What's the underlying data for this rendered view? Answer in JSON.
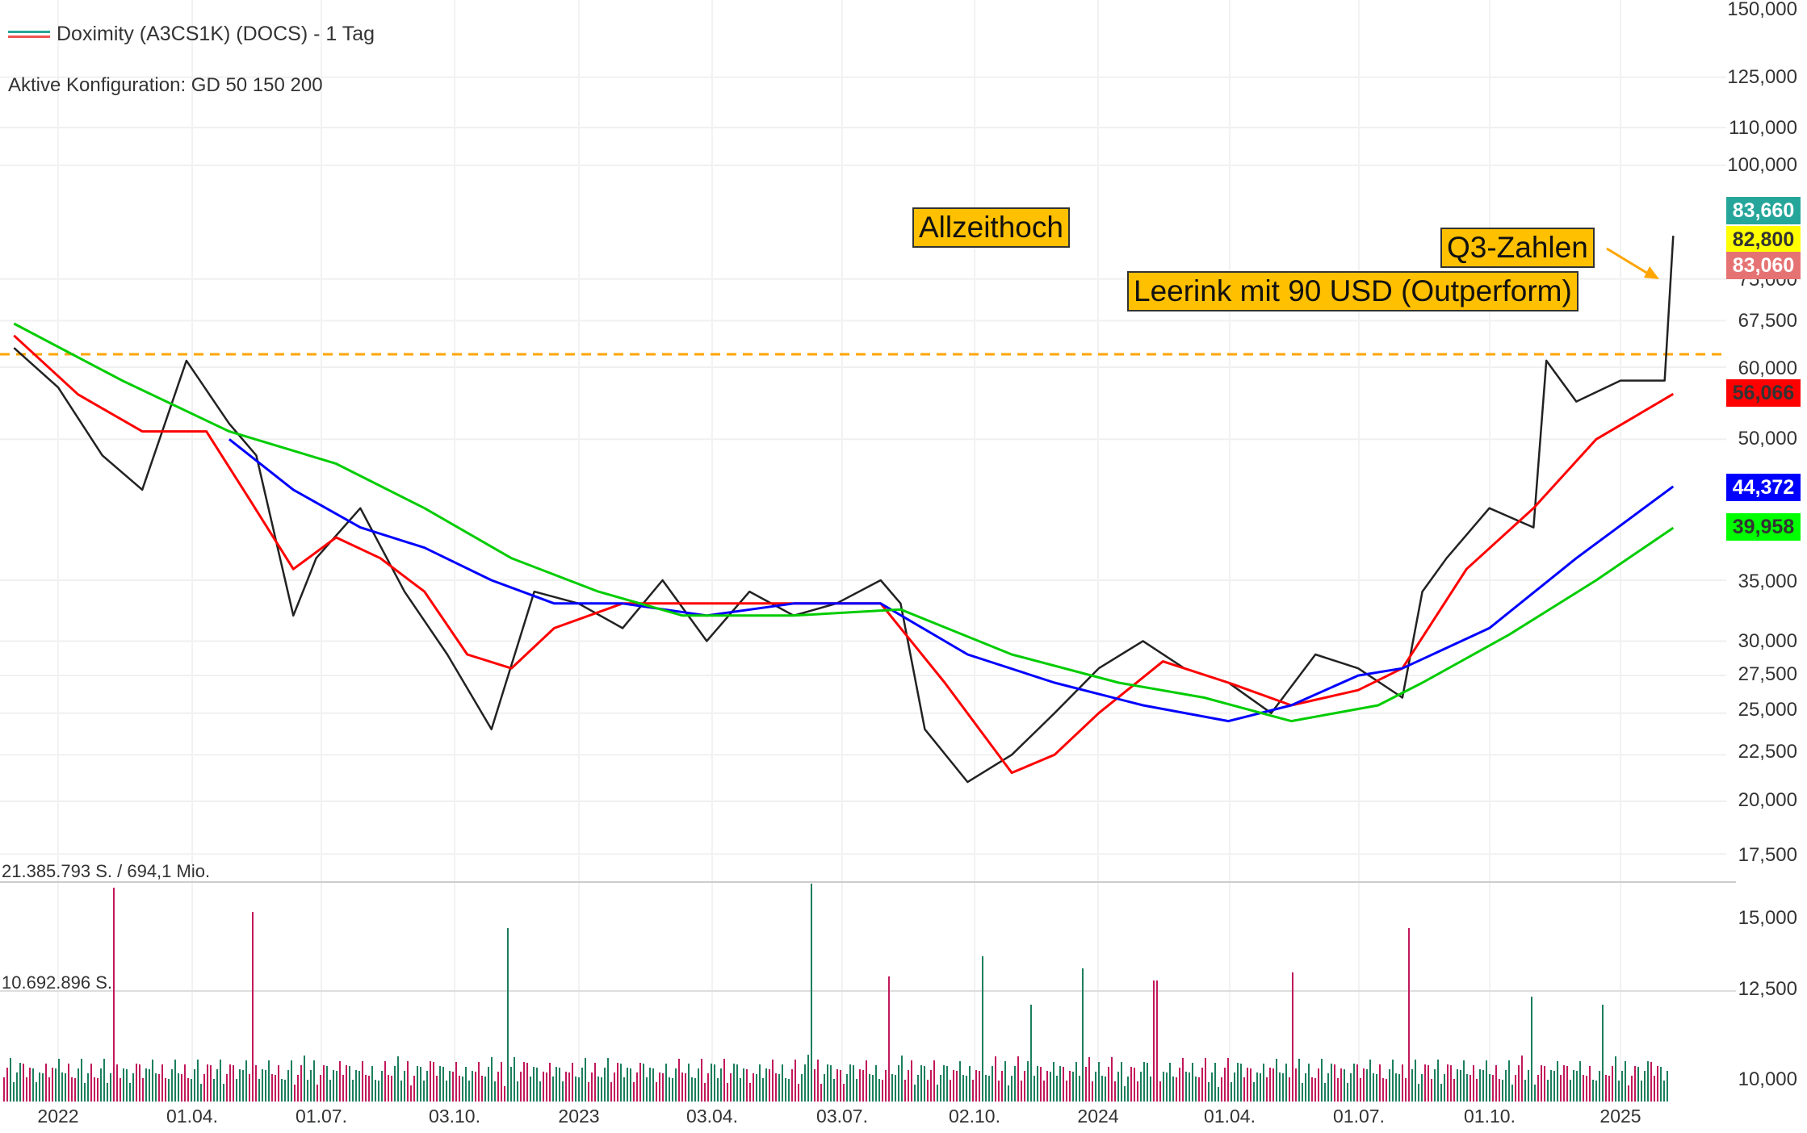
{
  "header": {
    "title": "Doximity (A3CS1K) (DOCS) - 1 Tag",
    "config": "Aktive Konfiguration: GD 50 150 200"
  },
  "volume_labels": {
    "max": "21.385.793 S. / 694,1 Mio.",
    "mid": "10.692.896 S."
  },
  "annotations": {
    "ath": "Allzeithoch",
    "q3": "Q3-Zahlen",
    "leerink": "Leerink mit 90 USD (Outperform)"
  },
  "price_tags": [
    {
      "label": "83,660",
      "bg": "#26a69a",
      "fg": "#ffffff"
    },
    {
      "label": "82,800",
      "bg": "#ffff00",
      "fg": "#333333"
    },
    {
      "label": "83,060",
      "bg": "#e57373",
      "fg": "#ffffff"
    },
    {
      "label": "56,066",
      "bg": "#ff0000",
      "fg": "#333333"
    },
    {
      "label": "44,372",
      "bg": "#0000ff",
      "fg": "#ffffff"
    },
    {
      "label": "39,958",
      "bg": "#00ff00",
      "fg": "#333333"
    }
  ],
  "y_ticks": [
    "150,000",
    "125,000",
    "110,000",
    "100,000",
    "75,000",
    "67,500",
    "60,000",
    "50,000",
    "35,000",
    "30,000",
    "27,500",
    "25,000",
    "22,500",
    "20,000",
    "17,500",
    "15,000",
    "12,500",
    "10,000"
  ],
  "x_ticks": [
    "2022",
    "01.04.",
    "01.07.",
    "03.10.",
    "2023",
    "03.04.",
    "03.07.",
    "02.10.",
    "2024",
    "01.04.",
    "01.07.",
    "01.10.",
    "2025"
  ],
  "chart_data": {
    "type": "line",
    "scale": "log",
    "ylim": [
      17500,
      150000
    ],
    "resistance_level": 62500,
    "series": [
      {
        "name": "",
        "color": "#222222",
        "x": [
          "2021-12-01",
          "2022-01-01",
          "2022-02-01",
          "2022-03-01",
          "2022-04-01",
          "2022-05-01",
          "2022-05-20",
          "2022-06-15",
          "2022-07-01",
          "2022-08-01",
          "2022-09-01",
          "2022-10-01",
          "2022-11-01",
          "2022-12-01",
          "2023-01-01",
          "2023-02-01",
          "2023-03-01",
          "2023-04-01",
          "2023-05-01",
          "2023-06-01",
          "2023-07-01",
          "2023-08-01",
          "2023-08-15",
          "2023-09-01",
          "2023-10-01",
          "2023-11-01",
          "2023-12-01",
          "2024-01-01",
          "2024-02-01",
          "2024-03-01",
          "2024-04-01",
          "2024-05-01",
          "2024-06-01",
          "2024-07-01",
          "2024-08-01",
          "2024-08-15",
          "2024-09-01",
          "2024-10-01",
          "2024-11-01",
          "2024-11-10",
          "2024-12-01",
          "2025-01-01",
          "2025-02-01",
          "2025-02-07"
        ],
        "y": [
          63000,
          57000,
          48000,
          44000,
          61000,
          52000,
          48000,
          32000,
          37000,
          42000,
          34000,
          29000,
          24000,
          34000,
          33000,
          31000,
          35000,
          30000,
          34000,
          32000,
          33000,
          35000,
          33000,
          24000,
          21000,
          22500,
          25000,
          28000,
          30000,
          28000,
          27000,
          25000,
          29000,
          28000,
          26000,
          34000,
          37000,
          42000,
          40000,
          61000,
          55000,
          58000,
          58000,
          83660
        ]
      },
      {
        "name": "GD 50",
        "color": "#ff0000",
        "x": [
          "2021-12-01",
          "2022-01-15",
          "2022-03-01",
          "2022-04-15",
          "2022-05-15",
          "2022-06-15",
          "2022-07-15",
          "2022-08-15",
          "2022-09-15",
          "2022-10-15",
          "2022-11-15",
          "2022-12-15",
          "2023-02-01",
          "2023-04-01",
          "2023-06-01",
          "2023-08-01",
          "2023-09-15",
          "2023-11-01",
          "2023-12-01",
          "2024-01-01",
          "2024-02-15",
          "2024-04-01",
          "2024-05-15",
          "2024-07-01",
          "2024-08-01",
          "2024-09-15",
          "2024-11-01",
          "2024-12-15",
          "2025-02-07"
        ],
        "y": [
          65000,
          56000,
          51000,
          51000,
          43000,
          36000,
          39000,
          37000,
          34000,
          29000,
          28000,
          31000,
          33000,
          33000,
          33000,
          33000,
          27000,
          21500,
          22500,
          25000,
          28500,
          27000,
          25500,
          26500,
          28000,
          36000,
          42000,
          50000,
          56066
        ]
      },
      {
        "name": "GD 150",
        "color": "#0000ff",
        "x": [
          "2022-05-01",
          "2022-06-15",
          "2022-08-01",
          "2022-09-15",
          "2022-11-01",
          "2022-12-15",
          "2023-02-01",
          "2023-04-01",
          "2023-06-01",
          "2023-08-01",
          "2023-10-01",
          "2023-12-01",
          "2024-02-01",
          "2024-04-01",
          "2024-05-15",
          "2024-07-01",
          "2024-08-01",
          "2024-10-01",
          "2024-12-01",
          "2025-02-07"
        ],
        "y": [
          50000,
          44000,
          40000,
          38000,
          35000,
          33000,
          33000,
          32000,
          33000,
          33000,
          29000,
          27000,
          25500,
          24500,
          25500,
          27500,
          28000,
          31000,
          37000,
          44372
        ]
      },
      {
        "name": "GD 200",
        "color": "#00cc00",
        "x": [
          "2021-12-01",
          "2022-02-15",
          "2022-05-01",
          "2022-07-15",
          "2022-09-15",
          "2022-11-15",
          "2023-01-15",
          "2023-03-15",
          "2023-06-01",
          "2023-08-15",
          "2023-11-01",
          "2024-01-15",
          "2024-03-15",
          "2024-05-15",
          "2024-07-15",
          "2024-08-15",
          "2024-10-15",
          "2024-12-15",
          "2025-02-07"
        ],
        "y": [
          67000,
          58000,
          51000,
          47000,
          42000,
          37000,
          34000,
          32000,
          32000,
          32500,
          29000,
          27000,
          26000,
          24500,
          25500,
          27000,
          30500,
          35000,
          39958
        ]
      }
    ],
    "annotations": [
      "Allzeithoch",
      "Q3-Zahlen",
      "Leerink mit 90 USD (Outperform)"
    ]
  }
}
